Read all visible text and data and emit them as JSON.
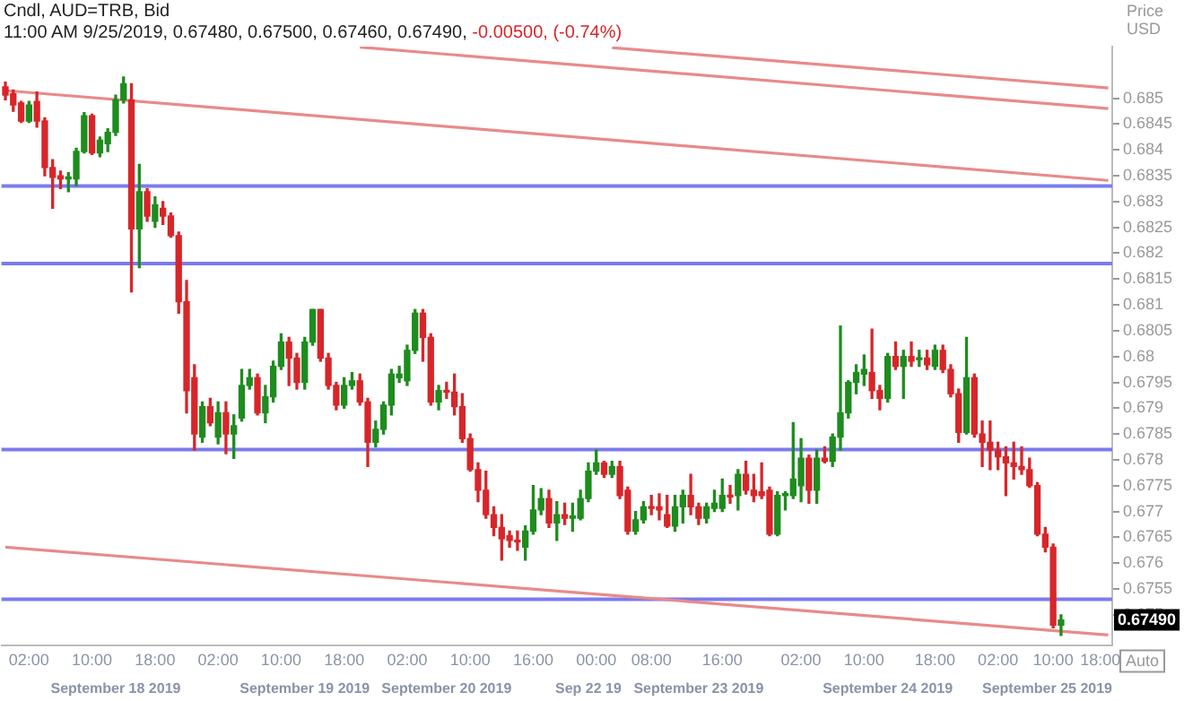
{
  "chart_data": {
    "type": "candlestick",
    "title": "Cndl, AUD=TRB, Bid",
    "subtitle": "11:00 AM 9/25/2019, 0.67480, 0.67500, 0.67460, 0.67490,",
    "ylabel": "Price USD",
    "categories": [
      null,
      null,
      null,
      "02:00",
      null,
      null,
      null,
      null,
      null,
      null,
      null,
      "10:00",
      null,
      null,
      null,
      null,
      null,
      null,
      null,
      "18:00",
      null,
      null,
      null,
      null,
      null,
      null,
      null,
      "02:00",
      null,
      null,
      null,
      null,
      null,
      null,
      null,
      "10:00",
      null,
      null,
      null,
      null,
      null,
      null,
      null,
      "18:00",
      null,
      null,
      null,
      null,
      null,
      null,
      null,
      "02:00",
      null,
      null,
      null,
      null,
      null,
      null,
      null,
      "10:00",
      null,
      null,
      null,
      null,
      null,
      null,
      null,
      "16:00",
      null,
      null,
      null,
      null,
      null,
      null,
      null,
      "00:00",
      null,
      null,
      null,
      null,
      null,
      null,
      "08:00",
      null,
      null,
      null,
      null,
      null,
      null,
      null,
      null,
      "16:00",
      null,
      null,
      null,
      null,
      null,
      null,
      null,
      null,
      null,
      "02:00",
      null,
      null,
      null,
      null,
      null,
      null,
      null,
      "10:00",
      null,
      null,
      null,
      null,
      null,
      null,
      null,
      null,
      "18:00",
      null,
      null,
      null,
      null,
      null,
      null,
      null,
      "02:00",
      null,
      null,
      null,
      null,
      null,
      null,
      "10:00",
      null,
      null,
      null,
      null,
      null,
      "18:00",
      null
    ],
    "ohlc": [
      [
        0.68522,
        0.68531,
        0.68497,
        0.68506
      ],
      [
        0.68509,
        0.68516,
        0.68475,
        0.68487
      ],
      [
        0.68491,
        0.68494,
        0.68453,
        0.68456
      ],
      [
        0.68456,
        0.68494,
        0.68453,
        0.68487
      ],
      [
        0.68494,
        0.68512,
        0.68444,
        0.68456
      ],
      [
        0.68456,
        0.68462,
        0.6835,
        0.68366
      ],
      [
        0.68366,
        0.68381,
        0.68287,
        0.68347
      ],
      [
        0.6835,
        0.68359,
        0.68325,
        0.68344
      ],
      [
        0.68344,
        0.68356,
        0.68319,
        0.68347
      ],
      [
        0.68344,
        0.68403,
        0.68331,
        0.68397
      ],
      [
        0.68397,
        0.68472,
        0.68394,
        0.68466
      ],
      [
        0.68466,
        0.68469,
        0.68391,
        0.68394
      ],
      [
        0.68394,
        0.68425,
        0.68387,
        0.68419
      ],
      [
        0.68412,
        0.68441,
        0.68397,
        0.68434
      ],
      [
        0.68434,
        0.68506,
        0.68428,
        0.68497
      ],
      [
        0.68497,
        0.68541,
        0.68491,
        0.68528
      ],
      [
        0.68497,
        0.68528,
        0.68125,
        0.68247
      ],
      [
        0.68247,
        0.68372,
        0.68172,
        0.68319
      ],
      [
        0.68319,
        0.68325,
        0.68262,
        0.68272
      ],
      [
        0.68262,
        0.68309,
        0.6825,
        0.68294
      ],
      [
        0.68287,
        0.683,
        0.68256,
        0.68272
      ],
      [
        0.68272,
        0.68278,
        0.68231,
        0.68234
      ],
      [
        0.68234,
        0.68241,
        0.68084,
        0.68106
      ],
      [
        0.68106,
        0.68147,
        0.67891,
        0.67934
      ],
      [
        0.67959,
        0.67984,
        0.67819,
        0.6785
      ],
      [
        0.67844,
        0.67912,
        0.67834,
        0.67903
      ],
      [
        0.67903,
        0.67919,
        0.67866,
        0.67872
      ],
      [
        0.67844,
        0.67912,
        0.67831,
        0.67891
      ],
      [
        0.67891,
        0.67912,
        0.67812,
        0.6785
      ],
      [
        0.6785,
        0.67887,
        0.67803,
        0.67866
      ],
      [
        0.67881,
        0.67975,
        0.67875,
        0.67944
      ],
      [
        0.67944,
        0.67975,
        0.67937,
        0.67959
      ],
      [
        0.67959,
        0.67966,
        0.67887,
        0.67891
      ],
      [
        0.67891,
        0.67944,
        0.67872,
        0.67922
      ],
      [
        0.67922,
        0.67991,
        0.67912,
        0.67981
      ],
      [
        0.67981,
        0.68044,
        0.67975,
        0.68028
      ],
      [
        0.68028,
        0.68037,
        0.67944,
        0.67997
      ],
      [
        0.67997,
        0.68006,
        0.67937,
        0.6795
      ],
      [
        0.6795,
        0.68037,
        0.67937,
        0.68028
      ],
      [
        0.68028,
        0.68091,
        0.68022,
        0.68091
      ],
      [
        0.68091,
        0.68091,
        0.67991,
        0.67997
      ],
      [
        0.67997,
        0.68006,
        0.67937,
        0.67944
      ],
      [
        0.67944,
        0.6795,
        0.67897,
        0.67906
      ],
      [
        0.67906,
        0.67959,
        0.679,
        0.67944
      ],
      [
        0.67944,
        0.67969,
        0.67937,
        0.67953
      ],
      [
        0.67953,
        0.67966,
        0.67906,
        0.67912
      ],
      [
        0.67912,
        0.67919,
        0.67787,
        0.67834
      ],
      [
        0.67834,
        0.67875,
        0.67825,
        0.67859
      ],
      [
        0.67859,
        0.67912,
        0.6785,
        0.67906
      ],
      [
        0.67906,
        0.67975,
        0.67887,
        0.67966
      ],
      [
        0.67959,
        0.67981,
        0.6795,
        0.67966
      ],
      [
        0.67953,
        0.68022,
        0.67944,
        0.68012
      ],
      [
        0.68012,
        0.68091,
        0.68006,
        0.68084
      ],
      [
        0.68084,
        0.68091,
        0.67991,
        0.68037
      ],
      [
        0.68037,
        0.68044,
        0.67906,
        0.67912
      ],
      [
        0.67912,
        0.67944,
        0.67897,
        0.67934
      ],
      [
        0.67934,
        0.6795,
        0.67919,
        0.67931
      ],
      [
        0.67931,
        0.67966,
        0.67887,
        0.67903
      ],
      [
        0.67903,
        0.67928,
        0.67834,
        0.67841
      ],
      [
        0.67841,
        0.6785,
        0.67778,
        0.67781
      ],
      [
        0.67781,
        0.67794,
        0.67719,
        0.67741
      ],
      [
        0.67741,
        0.67778,
        0.67687,
        0.67694
      ],
      [
        0.67694,
        0.67709,
        0.67653,
        0.67669
      ],
      [
        0.67669,
        0.67694,
        0.67606,
        0.67647
      ],
      [
        0.67653,
        0.67662,
        0.67631,
        0.67644
      ],
      [
        0.67644,
        0.67662,
        0.67625,
        0.67641
      ],
      [
        0.67631,
        0.67672,
        0.67606,
        0.67662
      ],
      [
        0.67662,
        0.6775,
        0.67656,
        0.67703
      ],
      [
        0.67703,
        0.67744,
        0.67694,
        0.67725
      ],
      [
        0.67725,
        0.67741,
        0.67669,
        0.67678
      ],
      [
        0.67678,
        0.67719,
        0.67644,
        0.67694
      ],
      [
        0.67694,
        0.67716,
        0.67675,
        0.67687
      ],
      [
        0.67687,
        0.67716,
        0.67662,
        0.67691
      ],
      [
        0.67687,
        0.67741,
        0.67684,
        0.67725
      ],
      [
        0.67725,
        0.67794,
        0.67719,
        0.67778
      ],
      [
        0.67778,
        0.67819,
        0.67772,
        0.67794
      ],
      [
        0.67794,
        0.67797,
        0.67766,
        0.67772
      ],
      [
        0.67772,
        0.67797,
        0.67766,
        0.67787
      ],
      [
        0.67787,
        0.67797,
        0.67725,
        0.67731
      ],
      [
        0.67741,
        0.67747,
        0.67656,
        0.67662
      ],
      [
        0.67662,
        0.677,
        0.67656,
        0.67684
      ],
      [
        0.67684,
        0.67719,
        0.67678,
        0.67709
      ],
      [
        0.67709,
        0.67731,
        0.67694,
        0.67706
      ],
      [
        0.67709,
        0.67734,
        0.67684,
        0.67703
      ],
      [
        0.67694,
        0.67731,
        0.67669,
        0.67672
      ],
      [
        0.67672,
        0.67731,
        0.67662,
        0.67709
      ],
      [
        0.67709,
        0.67741,
        0.67678,
        0.67731
      ],
      [
        0.67731,
        0.67772,
        0.67694,
        0.67709
      ],
      [
        0.67709,
        0.67716,
        0.67675,
        0.67687
      ],
      [
        0.67687,
        0.67716,
        0.67678,
        0.67709
      ],
      [
        0.67706,
        0.67741,
        0.677,
        0.67716
      ],
      [
        0.67706,
        0.67763,
        0.677,
        0.67731
      ],
      [
        0.67731,
        0.6775,
        0.67716,
        0.67728
      ],
      [
        0.67731,
        0.67781,
        0.67703,
        0.67772
      ],
      [
        0.67772,
        0.67797,
        0.67734,
        0.67741
      ],
      [
        0.67741,
        0.67772,
        0.67719,
        0.67731
      ],
      [
        0.67738,
        0.67794,
        0.67725,
        0.67731
      ],
      [
        0.67741,
        0.67747,
        0.67653,
        0.67656
      ],
      [
        0.67656,
        0.67738,
        0.67653,
        0.67731
      ],
      [
        0.67731,
        0.67738,
        0.67703,
        0.67734
      ],
      [
        0.67731,
        0.67872,
        0.67725,
        0.67763
      ],
      [
        0.6775,
        0.67841,
        0.67719,
        0.67803
      ],
      [
        0.67803,
        0.67809,
        0.67716,
        0.67741
      ],
      [
        0.67741,
        0.67819,
        0.67716,
        0.67803
      ],
      [
        0.67803,
        0.67825,
        0.67794,
        0.67797
      ],
      [
        0.67797,
        0.6785,
        0.67787,
        0.67844
      ],
      [
        0.67844,
        0.68059,
        0.67819,
        0.67891
      ],
      [
        0.67891,
        0.67953,
        0.67881,
        0.6795
      ],
      [
        0.6795,
        0.67984,
        0.67928,
        0.67969
      ],
      [
        0.67966,
        0.68003,
        0.67944,
        0.67975
      ],
      [
        0.67969,
        0.68053,
        0.67919,
        0.67934
      ],
      [
        0.67934,
        0.67944,
        0.67897,
        0.67919
      ],
      [
        0.67919,
        0.68006,
        0.67912,
        0.68
      ],
      [
        0.68,
        0.68028,
        0.67975,
        0.67981
      ],
      [
        0.67981,
        0.68012,
        0.67919,
        0.68
      ],
      [
        0.68,
        0.68028,
        0.67981,
        0.67991
      ],
      [
        0.67994,
        0.68012,
        0.67981,
        0.67997
      ],
      [
        0.67997,
        0.68012,
        0.67975,
        0.67984
      ],
      [
        0.67981,
        0.68022,
        0.67975,
        0.68012
      ],
      [
        0.68012,
        0.68022,
        0.67969,
        0.67975
      ],
      [
        0.67975,
        0.67984,
        0.67922,
        0.67928
      ],
      [
        0.67928,
        0.67937,
        0.67834,
        0.67853
      ],
      [
        0.67853,
        0.68037,
        0.6785,
        0.67959
      ],
      [
        0.67959,
        0.67966,
        0.67844,
        0.6785
      ],
      [
        0.6785,
        0.67875,
        0.67787,
        0.67834
      ],
      [
        0.67834,
        0.67875,
        0.67781,
        0.67819
      ],
      [
        0.67819,
        0.67834,
        0.67781,
        0.67806
      ],
      [
        0.67806,
        0.67825,
        0.67731,
        0.67794
      ],
      [
        0.67794,
        0.67834,
        0.67763,
        0.67787
      ],
      [
        0.67787,
        0.67825,
        0.67772,
        0.67781
      ],
      [
        0.67781,
        0.67803,
        0.67747,
        0.6775
      ],
      [
        0.6775,
        0.67756,
        0.67653,
        0.67656
      ],
      [
        0.67656,
        0.67669,
        0.67622,
        0.67631
      ],
      [
        0.67631,
        0.67637,
        0.67475,
        0.6748
      ],
      [
        0.6748,
        0.675,
        0.6746,
        0.6749
      ],
      null,
      null,
      null,
      null,
      null,
      null
    ],
    "series": [
      {
        "type": "line",
        "color": "#e88a8a",
        "values": [
          null,
          null,
          null,
          null,
          null,
          null,
          null,
          null,
          null,
          null,
          null,
          null,
          null,
          null,
          null,
          null,
          null,
          null,
          null,
          null,
          null,
          null,
          null,
          null,
          null,
          null,
          null,
          null,
          null,
          null,
          null,
          null,
          null,
          null,
          null,
          null,
          null,
          null,
          null,
          null,
          null,
          null,
          null,
          null,
          null,
          null,
          null,
          null,
          null,
          null,
          null,
          null,
          null,
          null,
          null,
          null,
          null,
          null,
          null,
          null,
          null,
          null,
          null,
          null,
          null,
          null,
          null,
          null,
          null,
          null,
          null,
          null,
          null,
          null,
          null,
          null,
          null,
          0.68598,
          null,
          null,
          null,
          null,
          null,
          null,
          null,
          null,
          null,
          null,
          null,
          null,
          null,
          null,
          null,
          null,
          null,
          null,
          null,
          null,
          null,
          null,
          null,
          null,
          null,
          null,
          null,
          null,
          null,
          null,
          null,
          null,
          null,
          null,
          null,
          null,
          null,
          null,
          null,
          null,
          null,
          null,
          null,
          null,
          null,
          null,
          null,
          null,
          null,
          null,
          null,
          null,
          null,
          null,
          null,
          null,
          null,
          null,
          null,
          null,
          null,
          null,
          0.6852
        ]
      },
      {
        "type": "line",
        "color": "#e88a8a",
        "values": [
          null,
          null,
          null,
          null,
          null,
          null,
          null,
          null,
          null,
          null,
          null,
          null,
          null,
          null,
          null,
          null,
          null,
          null,
          null,
          null,
          null,
          null,
          null,
          null,
          null,
          null,
          null,
          null,
          null,
          null,
          null,
          null,
          null,
          null,
          null,
          null,
          null,
          null,
          null,
          null,
          null,
          null,
          null,
          null,
          null,
          0.68599,
          null,
          null,
          null,
          null,
          null,
          null,
          null,
          null,
          null,
          null,
          null,
          null,
          null,
          null,
          null,
          null,
          null,
          null,
          null,
          null,
          null,
          null,
          null,
          null,
          null,
          null,
          null,
          null,
          null,
          null,
          null,
          null,
          null,
          null,
          null,
          null,
          null,
          null,
          null,
          null,
          null,
          null,
          null,
          null,
          null,
          null,
          null,
          null,
          null,
          null,
          null,
          null,
          null,
          null,
          null,
          null,
          null,
          null,
          null,
          null,
          null,
          null,
          null,
          null,
          null,
          null,
          null,
          null,
          null,
          null,
          null,
          null,
          null,
          null,
          null,
          null,
          null,
          null,
          null,
          null,
          null,
          null,
          null,
          null,
          null,
          null,
          null,
          null,
          null,
          null,
          null,
          null,
          null,
          null,
          0.6848
        ]
      },
      {
        "type": "line",
        "color": "#e88a8a",
        "values": [
          0.68515,
          null,
          null,
          null,
          null,
          null,
          null,
          null,
          null,
          null,
          null,
          null,
          null,
          null,
          null,
          null,
          null,
          null,
          null,
          null,
          null,
          null,
          null,
          null,
          null,
          null,
          null,
          null,
          null,
          null,
          null,
          null,
          null,
          null,
          null,
          null,
          null,
          null,
          null,
          null,
          null,
          null,
          null,
          null,
          null,
          null,
          null,
          null,
          null,
          null,
          null,
          null,
          null,
          null,
          null,
          null,
          null,
          null,
          null,
          null,
          null,
          null,
          null,
          null,
          null,
          null,
          null,
          null,
          null,
          null,
          null,
          null,
          null,
          null,
          null,
          null,
          null,
          null,
          null,
          null,
          null,
          null,
          null,
          null,
          null,
          null,
          null,
          null,
          null,
          null,
          null,
          null,
          null,
          null,
          null,
          null,
          null,
          null,
          null,
          null,
          null,
          null,
          null,
          null,
          null,
          null,
          null,
          null,
          null,
          null,
          null,
          null,
          null,
          null,
          null,
          null,
          null,
          null,
          null,
          null,
          null,
          null,
          null,
          null,
          null,
          null,
          null,
          null,
          null,
          null,
          null,
          null,
          null,
          null,
          null,
          null,
          null,
          null,
          null,
          null,
          0.68341
        ]
      },
      {
        "type": "line",
        "color": "#e88a8a",
        "values": [
          0.67631,
          null,
          null,
          null,
          null,
          null,
          null,
          null,
          null,
          null,
          null,
          null,
          null,
          null,
          null,
          null,
          null,
          null,
          null,
          null,
          null,
          null,
          null,
          null,
          null,
          null,
          null,
          null,
          null,
          null,
          null,
          null,
          null,
          null,
          null,
          null,
          null,
          null,
          null,
          null,
          null,
          null,
          null,
          null,
          null,
          null,
          null,
          null,
          null,
          null,
          null,
          null,
          null,
          null,
          null,
          null,
          null,
          null,
          null,
          null,
          null,
          null,
          null,
          null,
          null,
          null,
          null,
          null,
          null,
          null,
          null,
          null,
          null,
          null,
          null,
          null,
          null,
          null,
          null,
          null,
          null,
          null,
          null,
          null,
          null,
          null,
          null,
          null,
          null,
          null,
          null,
          null,
          null,
          null,
          null,
          null,
          null,
          null,
          null,
          null,
          null,
          null,
          null,
          null,
          null,
          null,
          null,
          null,
          null,
          null,
          null,
          null,
          null,
          null,
          null,
          null,
          null,
          null,
          null,
          null,
          null,
          null,
          null,
          null,
          null,
          null,
          null,
          null,
          null,
          null,
          null,
          null,
          null,
          null,
          null,
          null,
          null,
          null,
          null,
          null,
          0.67461
        ]
      }
    ],
    "ref_lines": [
      {
        "axis": "y",
        "value": 0.6833,
        "color": "#7b7bef"
      },
      {
        "axis": "y",
        "value": 0.6818,
        "color": "#7b7bef"
      },
      {
        "axis": "y",
        "value": 0.6782,
        "color": "#7b7bef"
      },
      {
        "axis": "y",
        "value": 0.6753,
        "color": "#7b7bef"
      }
    ],
    "annotations": [
      "-0.00500, (-0.74%)",
      "September 18 2019",
      "September 19 2019",
      "September 20 2019",
      "Sep 22 19",
      "September 23 2019",
      "September 24 2019",
      "September 25 2019",
      "0.67490",
      "Auto"
    ],
    "ylim": [
      0.6744,
      0.686
    ],
    "yticks": [
      0.675,
      0.6755,
      0.676,
      0.6765,
      0.677,
      0.6775,
      0.678,
      0.6785,
      0.679,
      0.6795,
      0.68,
      0.6805,
      0.681,
      0.6815,
      0.682,
      0.6825,
      0.683,
      0.6835,
      0.684,
      0.6845,
      0.685
    ],
    "grid": false,
    "legend": false,
    "marker": "none",
    "line_style": "solid"
  }
}
